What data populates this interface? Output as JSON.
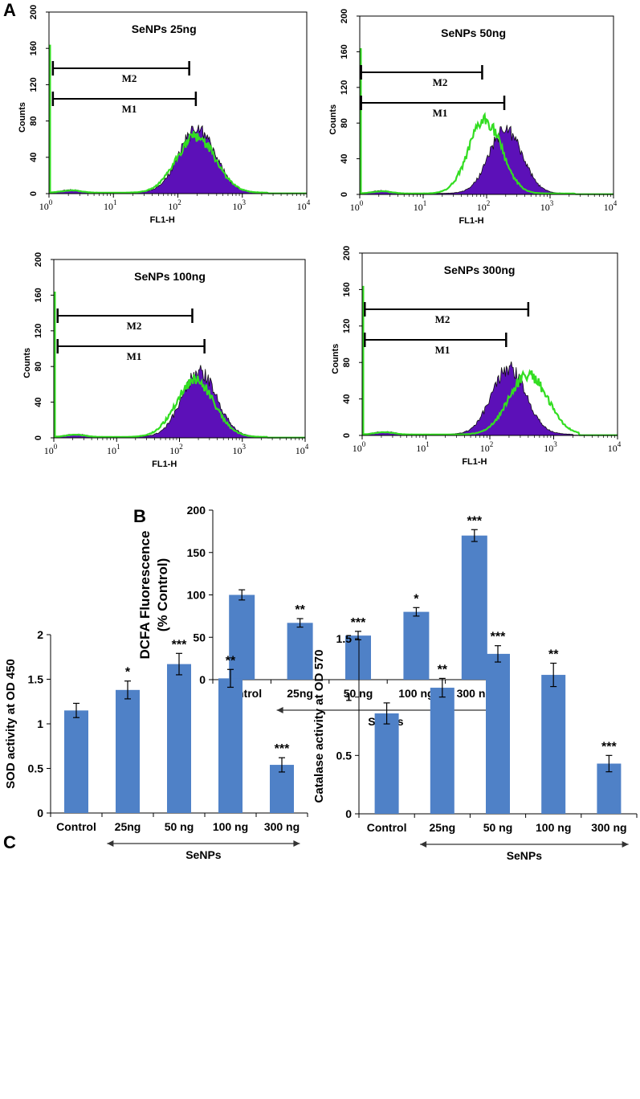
{
  "figure": {
    "panel_labels": [
      "A",
      "B",
      "C"
    ]
  },
  "chart_data": [
    {
      "id": "hist_25",
      "type": "histogram",
      "title": "SeNPs 25ng",
      "xlabel": "FL1-H",
      "ylabel": "Counts",
      "x_scale": "log",
      "xlim": [
        1,
        10000
      ],
      "ylim": [
        0,
        200
      ],
      "x_tick_exponents": [
        "0",
        "1",
        "2",
        "3",
        "4"
      ],
      "y_ticks": [
        0,
        40,
        80,
        120,
        160,
        200
      ],
      "filled_peak": {
        "center_log": 2.3,
        "height": 70,
        "width_log": 0.28
      },
      "overlay_peak": {
        "center_log": 2.28,
        "height": 62,
        "width_log": 0.3,
        "color": "#33dd22"
      },
      "markers": [
        {
          "label": "M2",
          "from": 1.15,
          "to": 150
        },
        {
          "label": "M1",
          "from": 1.15,
          "to": 190
        }
      ]
    },
    {
      "id": "hist_50",
      "type": "histogram",
      "title": "SeNPs 50ng",
      "xlabel": "FL1-H",
      "ylabel": "Counts",
      "x_scale": "log",
      "xlim": [
        1,
        10000
      ],
      "ylim": [
        0,
        200
      ],
      "x_tick_exponents": [
        "0",
        "1",
        "2",
        "3",
        "4"
      ],
      "y_ticks": [
        0,
        40,
        80,
        120,
        160,
        200
      ],
      "filled_peak": {
        "center_log": 2.3,
        "height": 72,
        "width_log": 0.26
      },
      "overlay_peak": {
        "center_log": 1.98,
        "height": 82,
        "width_log": 0.26,
        "color": "#33dd22"
      },
      "markers": [
        {
          "label": "M2",
          "from": 1.05,
          "to": 85
        },
        {
          "label": "M1",
          "from": 1.05,
          "to": 190
        }
      ]
    },
    {
      "id": "hist_100",
      "type": "histogram",
      "title": "SeNPs 100ng",
      "xlabel": "FL1-H",
      "ylabel": "Counts",
      "x_scale": "log",
      "xlim": [
        1,
        10000
      ],
      "ylim": [
        0,
        200
      ],
      "x_tick_exponents": [
        "0",
        "1",
        "2",
        "3",
        "4"
      ],
      "y_ticks": [
        0,
        40,
        80,
        120,
        160,
        200
      ],
      "filled_peak": {
        "center_log": 2.32,
        "height": 72,
        "width_log": 0.28
      },
      "overlay_peak": {
        "center_log": 2.25,
        "height": 64,
        "width_log": 0.3,
        "color": "#33dd22"
      },
      "markers": [
        {
          "label": "M2",
          "from": 1.15,
          "to": 160
        },
        {
          "label": "M1",
          "from": 1.15,
          "to": 250
        }
      ]
    },
    {
      "id": "hist_300",
      "type": "histogram",
      "title": "SeNPs 300ng",
      "xlabel": "FL1-H",
      "ylabel": "Counts",
      "x_scale": "log",
      "xlim": [
        1,
        10000
      ],
      "ylim": [
        0,
        200
      ],
      "x_tick_exponents": [
        "0",
        "1",
        "2",
        "3",
        "4"
      ],
      "y_ticks": [
        0,
        40,
        80,
        120,
        160,
        200
      ],
      "filled_peak": {
        "center_log": 2.3,
        "height": 72,
        "width_log": 0.27
      },
      "overlay_peak": {
        "center_log": 2.6,
        "height": 66,
        "width_log": 0.3,
        "color": "#33dd22"
      },
      "markers": [
        {
          "label": "M2",
          "from": 1.1,
          "to": 400
        },
        {
          "label": "M1",
          "from": 1.1,
          "to": 180
        }
      ]
    },
    {
      "id": "dcfa",
      "type": "bar",
      "title": "",
      "ylabel_lines": [
        "DCFA Fluorescence",
        "(% Control)"
      ],
      "categories": [
        "Control",
        "25ng",
        "50 ng",
        "100 ng",
        "300 ng"
      ],
      "values": [
        100,
        67,
        52,
        80,
        170
      ],
      "errors": [
        6,
        5,
        5,
        5,
        7
      ],
      "significance": [
        "",
        "**",
        "***",
        "*",
        "***"
      ],
      "ylim": [
        0,
        200
      ],
      "y_ticks": [
        0,
        50,
        100,
        150,
        200
      ],
      "group_label": "SeNPs",
      "bar_color": "#4f81c7"
    },
    {
      "id": "sod",
      "type": "bar",
      "title": "",
      "ylabel_lines": [
        "SOD activity at OD 450"
      ],
      "categories": [
        "Control",
        "25ng",
        "50 ng",
        "100 ng",
        "300 ng"
      ],
      "values": [
        1.15,
        1.38,
        1.67,
        1.51,
        0.54
      ],
      "errors": [
        0.08,
        0.1,
        0.12,
        0.1,
        0.08
      ],
      "significance": [
        "",
        "*",
        "***",
        "**",
        "***"
      ],
      "ylim": [
        0,
        2
      ],
      "y_ticks": [
        0,
        0.5,
        1,
        1.5,
        2
      ],
      "y_tick_labels": [
        "0",
        "0.5",
        "1",
        "1.5",
        "2"
      ],
      "group_label": "SeNPs",
      "bar_color": "#4f81c7"
    },
    {
      "id": "catalase",
      "type": "bar",
      "title": "",
      "ylabel_lines": [
        "Catalase  activity at OD 570"
      ],
      "categories": [
        "Control",
        "25ng",
        "50 ng",
        "100 ng",
        "300 ng"
      ],
      "values": [
        0.86,
        1.08,
        1.37,
        1.19,
        0.43
      ],
      "errors": [
        0.09,
        0.08,
        0.07,
        0.1,
        0.07
      ],
      "significance": [
        "",
        "**",
        "***",
        "**",
        "***"
      ],
      "ylim": [
        0,
        1.5
      ],
      "y_ticks": [
        0,
        0.5,
        1,
        1.5
      ],
      "y_tick_labels": [
        "0",
        "0.5",
        "1",
        "1.5"
      ],
      "group_label": "SeNPs",
      "bar_color": "#4f81c7"
    }
  ]
}
